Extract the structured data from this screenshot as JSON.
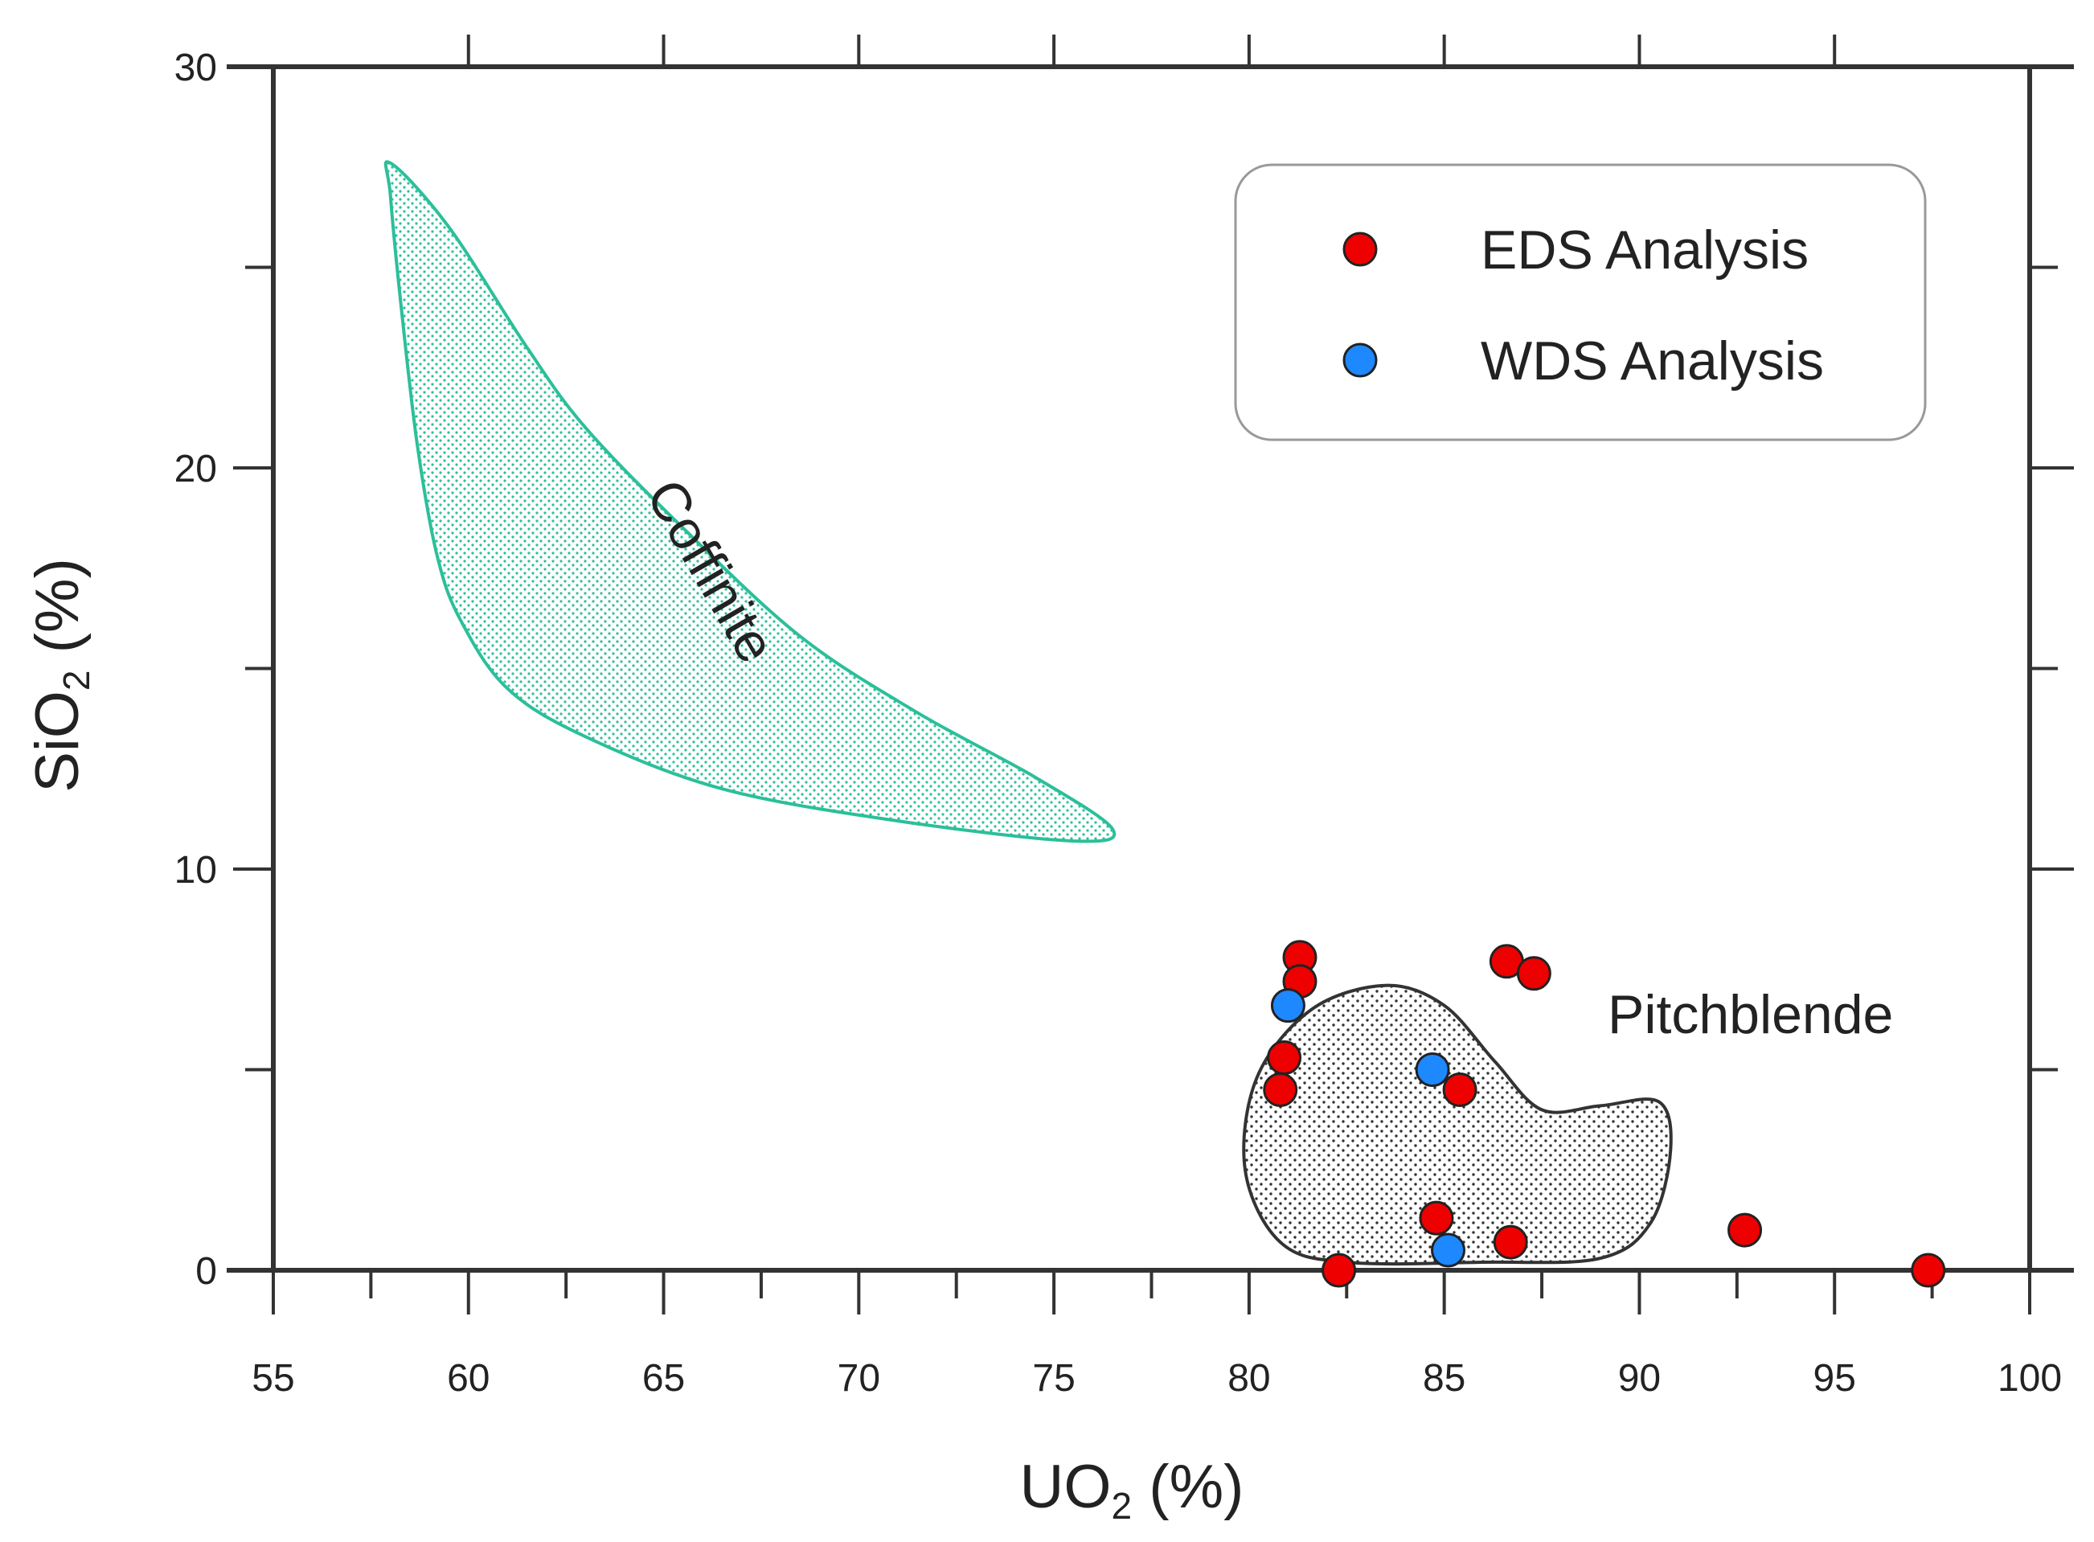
{
  "chart_data": {
    "type": "scatter",
    "title": "",
    "xlabel": "UO",
    "xlabel_sub": "2",
    "xlabel_unit": " (%)",
    "ylabel": "SiO",
    "ylabel_sub": "2",
    "ylabel_unit": " (%)",
    "xlim": [
      55,
      100
    ],
    "ylim": [
      0,
      30
    ],
    "x_ticks": [
      55,
      60,
      65,
      70,
      75,
      80,
      85,
      90,
      95,
      100
    ],
    "y_ticks": [
      0,
      10,
      20,
      30
    ],
    "legend_position": "top-right",
    "series": [
      {
        "name": "EDS Analysis",
        "color": "#ee0000",
        "points": [
          {
            "x": 81.3,
            "y": 7.8
          },
          {
            "x": 81.3,
            "y": 7.2
          },
          {
            "x": 86.6,
            "y": 7.7
          },
          {
            "x": 87.3,
            "y": 7.4
          },
          {
            "x": 80.9,
            "y": 5.3
          },
          {
            "x": 80.8,
            "y": 4.5
          },
          {
            "x": 85.4,
            "y": 4.5
          },
          {
            "x": 84.8,
            "y": 1.3
          },
          {
            "x": 86.7,
            "y": 0.7
          },
          {
            "x": 82.3,
            "y": 0.0
          },
          {
            "x": 92.7,
            "y": 1.0
          },
          {
            "x": 97.4,
            "y": 0.0
          }
        ]
      },
      {
        "name": "WDS Analysis",
        "color": "#1e88ff",
        "points": [
          {
            "x": 81.0,
            "y": 6.6
          },
          {
            "x": 84.7,
            "y": 5.0
          },
          {
            "x": 85.1,
            "y": 0.5
          }
        ]
      }
    ],
    "regions": [
      {
        "name": "Coffinite",
        "color": "#2bbf9a",
        "boundary": [
          {
            "x": 58.0,
            "y": 27.6
          },
          {
            "x": 59.5,
            "y": 26.0
          },
          {
            "x": 61.5,
            "y": 23.0
          },
          {
            "x": 63.0,
            "y": 21.0
          },
          {
            "x": 65.5,
            "y": 18.5
          },
          {
            "x": 68.5,
            "y": 15.8
          },
          {
            "x": 71.5,
            "y": 13.9
          },
          {
            "x": 74.5,
            "y": 12.3
          },
          {
            "x": 76.5,
            "y": 11.0
          },
          {
            "x": 75.5,
            "y": 10.7
          },
          {
            "x": 71.0,
            "y": 11.2
          },
          {
            "x": 66.5,
            "y": 12.0
          },
          {
            "x": 63.0,
            "y": 13.3
          },
          {
            "x": 61.0,
            "y": 14.5
          },
          {
            "x": 59.8,
            "y": 16.2
          },
          {
            "x": 59.2,
            "y": 17.8
          },
          {
            "x": 58.7,
            "y": 20.5
          },
          {
            "x": 58.3,
            "y": 23.8
          },
          {
            "x": 58.0,
            "y": 26.8
          }
        ]
      },
      {
        "name": "Pitchblende",
        "color": "#333333",
        "boundary": [
          {
            "x": 81.6,
            "y": 6.5
          },
          {
            "x": 83.5,
            "y": 7.1
          },
          {
            "x": 85.0,
            "y": 6.6
          },
          {
            "x": 86.3,
            "y": 5.2
          },
          {
            "x": 87.5,
            "y": 4.0
          },
          {
            "x": 89.0,
            "y": 4.1
          },
          {
            "x": 90.5,
            "y": 4.2
          },
          {
            "x": 90.8,
            "y": 3.0
          },
          {
            "x": 90.3,
            "y": 1.2
          },
          {
            "x": 89.0,
            "y": 0.3
          },
          {
            "x": 86.0,
            "y": 0.2
          },
          {
            "x": 82.5,
            "y": 0.2
          },
          {
            "x": 80.8,
            "y": 0.7
          },
          {
            "x": 79.9,
            "y": 2.5
          },
          {
            "x": 80.2,
            "y": 4.8
          }
        ]
      }
    ]
  }
}
